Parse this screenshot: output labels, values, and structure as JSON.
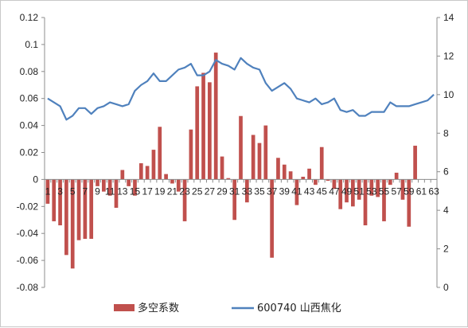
{
  "chart_data": {
    "type": "bar+line",
    "title": "",
    "x": [
      1,
      2,
      3,
      4,
      5,
      6,
      7,
      8,
      9,
      10,
      11,
      12,
      13,
      14,
      15,
      16,
      17,
      18,
      19,
      20,
      21,
      22,
      23,
      24,
      25,
      26,
      27,
      28,
      29,
      30,
      31,
      32,
      33,
      34,
      35,
      36,
      37,
      38,
      39,
      40,
      41,
      42,
      43,
      44,
      45,
      46,
      47,
      48,
      49,
      50,
      51,
      52,
      53,
      54,
      55,
      56,
      57,
      58,
      59,
      60,
      61,
      62,
      63
    ],
    "x_tick_labels": [
      1,
      3,
      5,
      7,
      9,
      11,
      13,
      15,
      17,
      19,
      21,
      23,
      25,
      27,
      29,
      31,
      33,
      35,
      37,
      39,
      41,
      43,
      45,
      47,
      49,
      51,
      53,
      55,
      57,
      59,
      61,
      63
    ],
    "y_left": {
      "ylim": [
        -0.08,
        0.12
      ],
      "ticks": [
        "-0.08",
        "-0.06",
        "-0.04",
        "-0.02",
        "0",
        "0.02",
        "0.04",
        "0.06",
        "0.08",
        "0.1",
        "0.12"
      ]
    },
    "y_right": {
      "ylim": [
        0,
        14
      ],
      "ticks": [
        "0",
        "2",
        "4",
        "6",
        "8",
        "10",
        "12",
        "14"
      ]
    },
    "series": [
      {
        "name": "多空系数",
        "kind": "bar",
        "axis": "left",
        "color": "#c0504d",
        "values": [
          -0.018,
          -0.031,
          -0.034,
          -0.056,
          -0.066,
          -0.045,
          -0.044,
          -0.044,
          -0.005,
          -0.009,
          -0.012,
          -0.021,
          0.007,
          -0.005,
          -0.012,
          0.012,
          0.01,
          0.022,
          0.039,
          0.004,
          -0.003,
          -0.009,
          -0.031,
          0.037,
          0.069,
          0.079,
          0.072,
          0.094,
          0.017,
          0.001,
          -0.03,
          0.047,
          -0.017,
          0.033,
          0.027,
          0.04,
          -0.058,
          0.016,
          0.011,
          0.006,
          -0.019,
          0.002,
          0.008,
          -0.004,
          0.024,
          -0.001,
          -0.007,
          -0.022,
          -0.017,
          -0.02,
          -0.015,
          -0.034,
          -0.012,
          -0.013,
          -0.031,
          -0.004,
          0.005,
          -0.015,
          -0.035,
          0.025,
          0.0,
          0.0,
          0.0
        ]
      },
      {
        "name": "600740 山西焦化",
        "kind": "line",
        "axis": "right",
        "color": "#4f81bd",
        "values": [
          9.8,
          9.6,
          9.4,
          8.7,
          8.9,
          9.3,
          9.3,
          9.0,
          9.3,
          9.4,
          9.6,
          9.5,
          9.4,
          9.5,
          10.2,
          10.5,
          10.7,
          11.1,
          10.7,
          10.7,
          11.0,
          11.3,
          11.4,
          11.6,
          11.0,
          11.0,
          11.2,
          11.8,
          11.6,
          11.5,
          11.3,
          11.9,
          11.6,
          11.4,
          11.3,
          10.6,
          10.2,
          10.4,
          10.6,
          10.3,
          9.8,
          9.7,
          9.6,
          9.8,
          9.5,
          9.6,
          9.8,
          9.2,
          9.1,
          9.2,
          8.9,
          8.9,
          9.1,
          9.1,
          9.1,
          9.6,
          9.4,
          9.4,
          9.4,
          9.5,
          9.6,
          9.7,
          10.0
        ]
      }
    ],
    "grid": false,
    "legend_position": "bottom"
  }
}
